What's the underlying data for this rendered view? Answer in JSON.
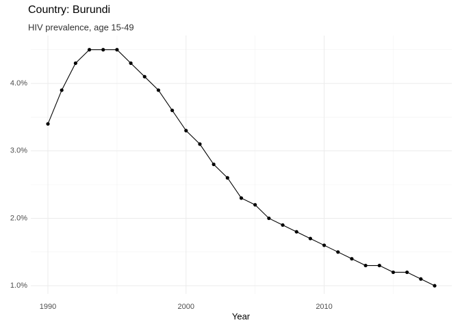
{
  "chart_data": {
    "type": "line",
    "title": "Country: Burundi",
    "subtitle": "HIV prevalence, age 15-49",
    "x_label": "Year",
    "x": [
      1990,
      1991,
      1992,
      1993,
      1994,
      1995,
      1996,
      1997,
      1998,
      1999,
      2000,
      2001,
      2002,
      2003,
      2004,
      2005,
      2006,
      2007,
      2008,
      2009,
      2010,
      2011,
      2012,
      2013,
      2014,
      2015,
      2016,
      2017,
      2018
    ],
    "values": [
      3.4,
      3.9,
      4.3,
      4.5,
      4.5,
      4.5,
      4.3,
      4.1,
      3.9,
      3.6,
      3.3,
      3.1,
      2.8,
      2.6,
      2.3,
      2.2,
      2.0,
      1.9,
      1.8,
      1.7,
      1.6,
      1.5,
      1.4,
      1.3,
      1.3,
      1.2,
      1.2,
      1.1,
      1.0
    ],
    "color": "#000000",
    "xlim": [
      1988.76,
      2019.24
    ],
    "xticks": [
      1990,
      2000,
      2010
    ],
    "x_minor_ticks": [
      1995,
      2005,
      2015
    ],
    "ylim": [
      0.88,
      4.71
    ],
    "yticks": [
      {
        "value": 1,
        "label": "1.0%"
      },
      {
        "value": 2,
        "label": "2.0%"
      },
      {
        "value": 3,
        "label": "3.0%"
      },
      {
        "value": 4,
        "label": "4.0%"
      }
    ],
    "y_minor_ticks": [
      1.5,
      2.5,
      3.5,
      4.5
    ],
    "grid": true
  }
}
